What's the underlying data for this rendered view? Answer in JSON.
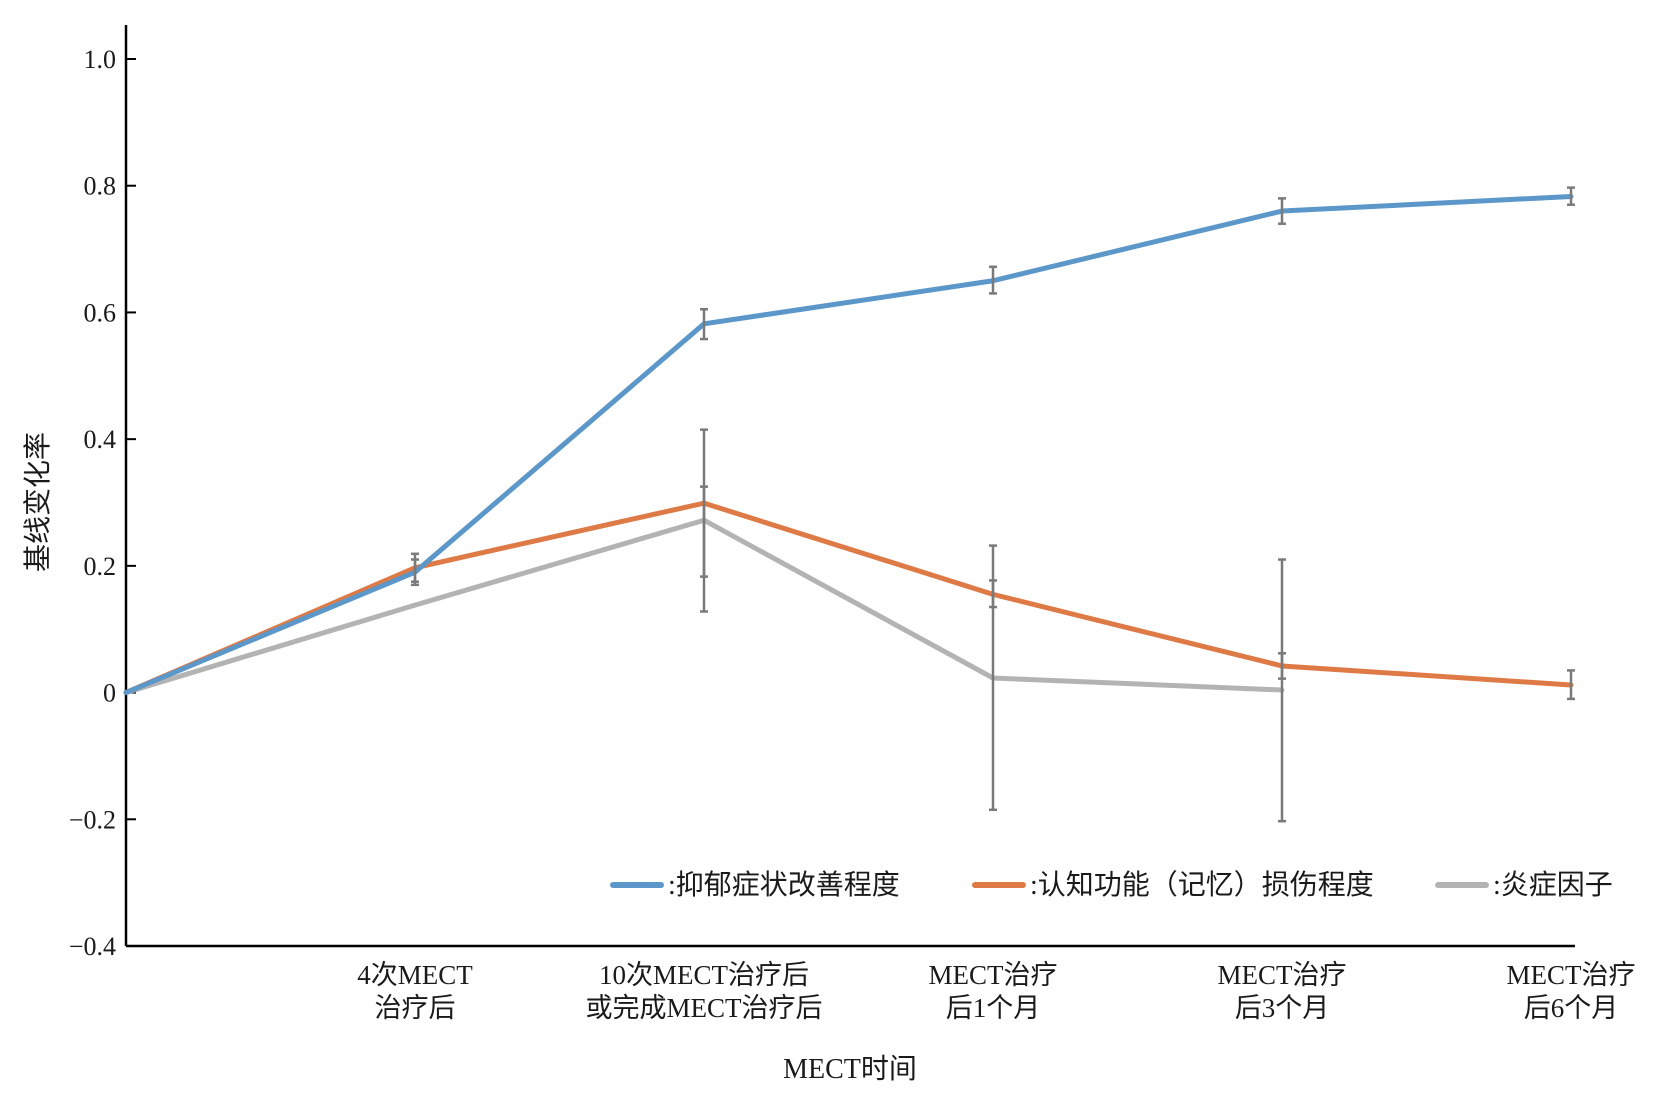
{
  "chart_data": {
    "type": "line",
    "title": "",
    "xlabel": "MECT时间",
    "ylabel": "基线变化率",
    "ylim": [
      -0.4,
      1.0
    ],
    "yticks": [
      "1.0",
      "0.8",
      "0.6",
      "0.4",
      "0.2",
      "0",
      "−0.2",
      "−0.4"
    ],
    "ytick_values": [
      1.0,
      0.8,
      0.6,
      0.4,
      0.2,
      0,
      -0.2,
      -0.4
    ],
    "categories": [
      "",
      "4次MECT\n治疗后",
      "10次MECT治疗后\n或完成MECT治疗后",
      "MECT治疗\n后1个月",
      "MECT治疗\n后3个月",
      "MECT治疗\n后6个月"
    ],
    "series": [
      {
        "name": ":抑郁症状改善程度",
        "color": "#5b97c9",
        "values": [
          0,
          0.19,
          0.582,
          0.65,
          0.76,
          0.783
        ],
        "err_low": [
          null,
          0.17,
          0.558,
          0.63,
          0.74,
          0.77
        ],
        "err_high": [
          null,
          0.21,
          0.605,
          0.672,
          0.78,
          0.797
        ]
      },
      {
        "name": ":认知功能（记忆）损伤程度",
        "color": "#de7a45",
        "values": [
          0,
          0.197,
          0.299,
          0.155,
          0.042,
          0.012
        ],
        "err_low": [
          null,
          0.175,
          0.183,
          0.135,
          0.022,
          -0.01
        ],
        "err_high": [
          null,
          0.219,
          0.415,
          0.232,
          0.062,
          0.035
        ]
      },
      {
        "name": ":炎症因子",
        "color": "#b3b3b3",
        "values": [
          0,
          0.138,
          0.272,
          0.023,
          0.004,
          null
        ],
        "err_low": [
          null,
          null,
          0.128,
          -0.185,
          -0.203,
          null
        ],
        "err_high": [
          null,
          null,
          0.325,
          0.177,
          0.21,
          null
        ]
      }
    ],
    "legend_position": "bottom-right",
    "grid": false
  }
}
